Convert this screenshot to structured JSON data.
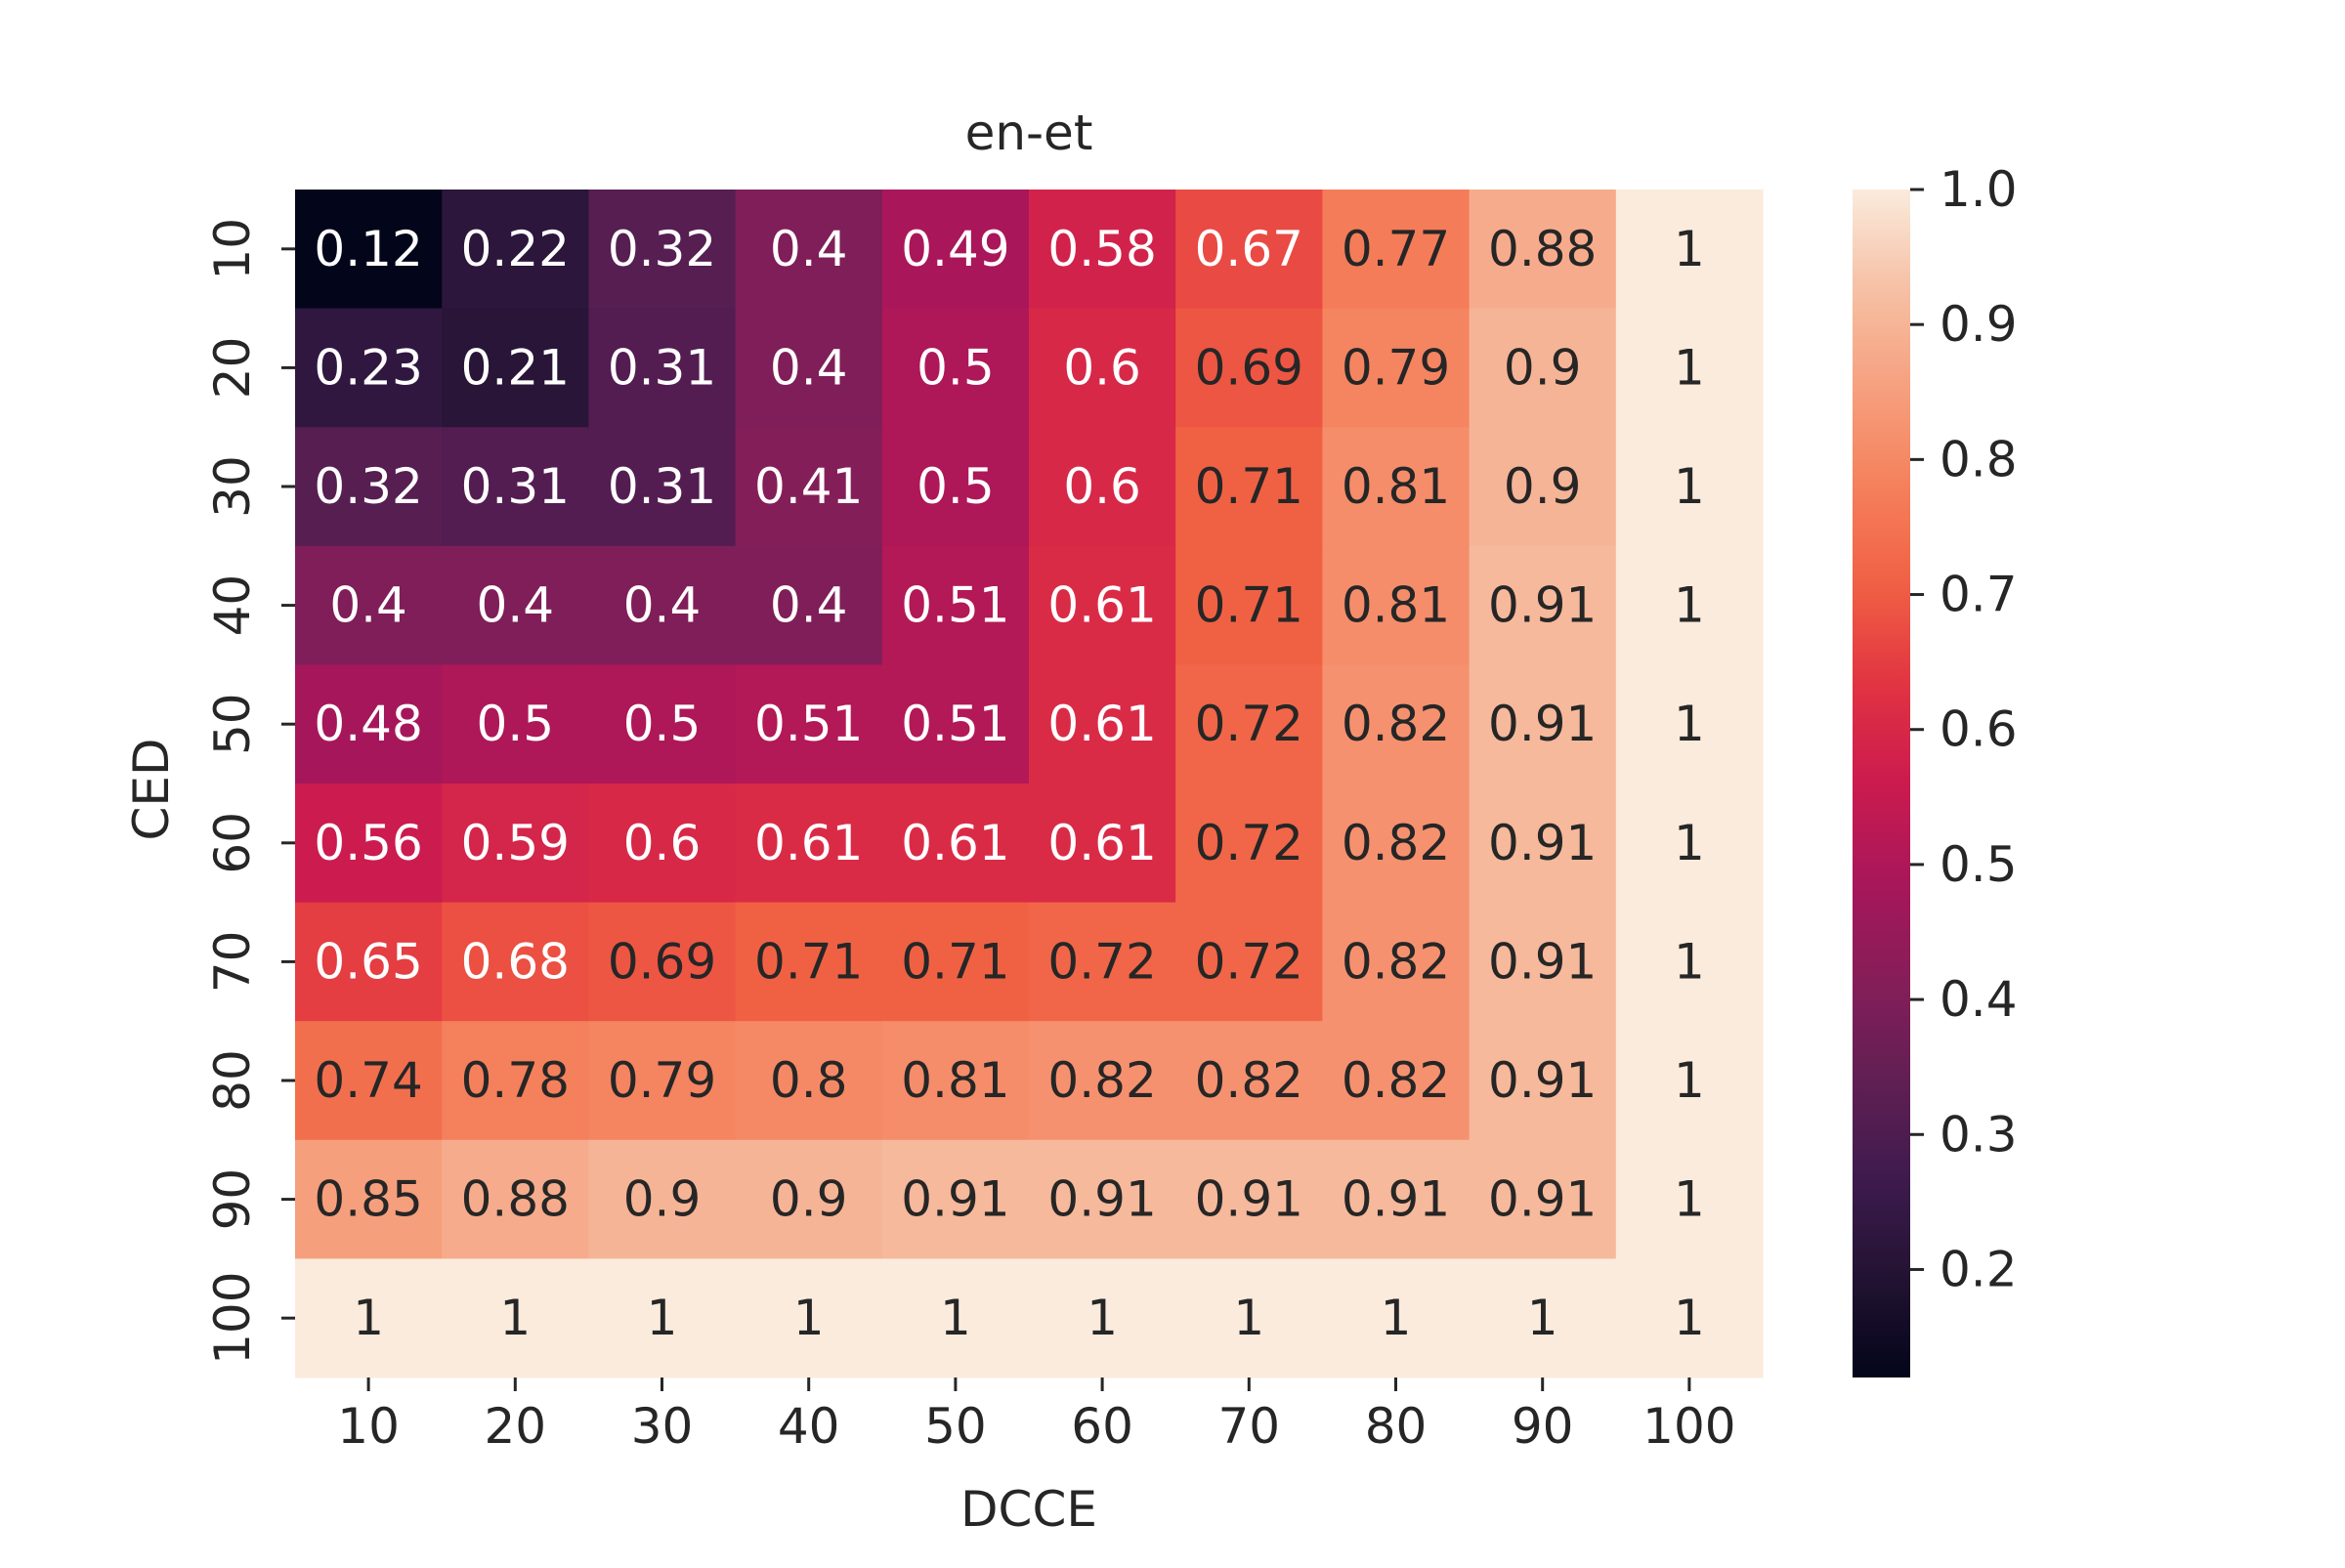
{
  "chart_data": {
    "type": "heatmap",
    "title": "en-et",
    "xlabel": "DCCE",
    "ylabel": "CED",
    "x_categories": [
      "10",
      "20",
      "30",
      "40",
      "50",
      "60",
      "70",
      "80",
      "90",
      "100"
    ],
    "y_categories": [
      "10",
      "20",
      "30",
      "40",
      "50",
      "60",
      "70",
      "80",
      "90",
      "100"
    ],
    "values": [
      [
        0.12,
        0.22,
        0.32,
        0.4,
        0.49,
        0.58,
        0.67,
        0.77,
        0.88,
        1
      ],
      [
        0.23,
        0.21,
        0.31,
        0.4,
        0.5,
        0.6,
        0.69,
        0.79,
        0.9,
        1
      ],
      [
        0.32,
        0.31,
        0.31,
        0.41,
        0.5,
        0.6,
        0.71,
        0.81,
        0.9,
        1
      ],
      [
        0.4,
        0.4,
        0.4,
        0.4,
        0.51,
        0.61,
        0.71,
        0.81,
        0.91,
        1
      ],
      [
        0.48,
        0.5,
        0.5,
        0.51,
        0.51,
        0.61,
        0.72,
        0.82,
        0.91,
        1
      ],
      [
        0.56,
        0.59,
        0.6,
        0.61,
        0.61,
        0.61,
        0.72,
        0.82,
        0.91,
        1
      ],
      [
        0.65,
        0.68,
        0.69,
        0.71,
        0.71,
        0.72,
        0.72,
        0.82,
        0.91,
        1
      ],
      [
        0.74,
        0.78,
        0.79,
        0.8,
        0.81,
        0.82,
        0.82,
        0.82,
        0.91,
        1
      ],
      [
        0.85,
        0.88,
        0.9,
        0.9,
        0.91,
        0.91,
        0.91,
        0.91,
        0.91,
        1
      ],
      [
        1,
        1,
        1,
        1,
        1,
        1,
        1,
        1,
        1,
        1
      ]
    ],
    "value_range": [
      0.12,
      1.0
    ],
    "colorbar_ticks": [
      "0.2",
      "0.3",
      "0.4",
      "0.5",
      "0.6",
      "0.7",
      "0.8",
      "0.9",
      "1.0"
    ],
    "colormap": "rocket",
    "colormap_stops": [
      "#03051a",
      "#221331",
      "#3e1a4e",
      "#611f53",
      "#861e59",
      "#a8165a",
      "#cb1b4f",
      "#e13342",
      "#f06043",
      "#f5805c",
      "#f6a07e",
      "#f6c0a4",
      "#faebdd"
    ]
  }
}
